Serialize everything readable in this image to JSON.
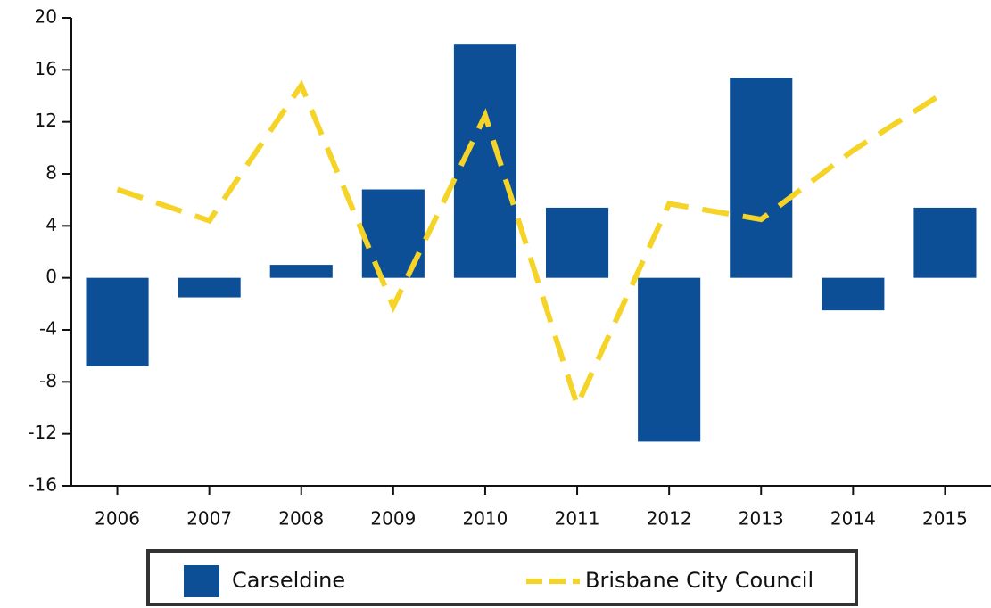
{
  "chart_data": {
    "type": "bar",
    "categories": [
      "2006",
      "2007",
      "2008",
      "2009",
      "2010",
      "2011",
      "2012",
      "2013",
      "2014",
      "2015"
    ],
    "series": [
      {
        "name": "Carseldine",
        "type": "bar",
        "color": "#0d4f96",
        "values": [
          -6.8,
          -1.5,
          1.0,
          6.8,
          18.0,
          5.4,
          -12.6,
          15.4,
          -2.5,
          5.4
        ]
      },
      {
        "name": "Brisbane City Council",
        "type": "line",
        "color": "#f5d327",
        "values": [
          6.8,
          4.4,
          14.8,
          -2.2,
          12.5,
          -9.8,
          5.7,
          4.5,
          9.8,
          14.3
        ]
      }
    ],
    "ylim": [
      -16,
      20
    ],
    "yticks": [
      -16,
      -12,
      -8,
      -4,
      0,
      4,
      8,
      12,
      16,
      20
    ],
    "grid": false
  }
}
